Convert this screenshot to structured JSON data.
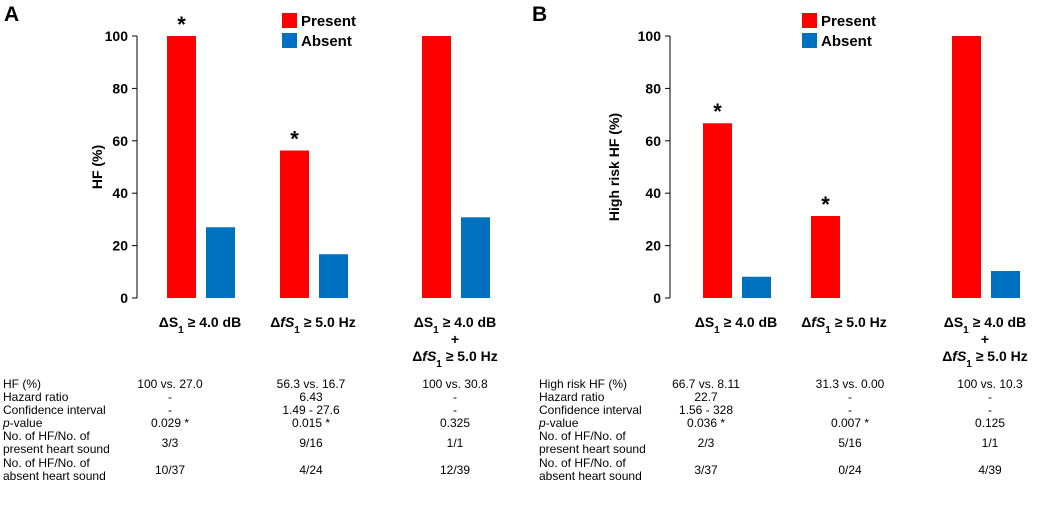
{
  "chart_data": [
    {
      "panel": "A",
      "type": "bar",
      "categories": [
        {
          "line1_a": "ΔS",
          "line1_sub": "1",
          "line1_b": " ≥ 4.0 dB",
          "line2_a": "",
          "line2_sub": "",
          "line2_b": "",
          "line3_a": "",
          "line3_sub": "",
          "line3_b": ""
        },
        {
          "line1_a": "Δ",
          "line1_sub": "",
          "line1_b": "",
          "line1_i": "fS",
          "line1_isub": "1",
          "line1_c": " ≥ 5.0 Hz",
          "line2_a": "",
          "line3_a": ""
        },
        {
          "line1_a": "ΔS",
          "line1_sub": "1",
          "line1_b": " ≥ 4.0 dB",
          "line2_a": "+",
          "line3_a": "Δ",
          "line3_i": "fS",
          "line3_isub": "1",
          "line3_c": " ≥ 5.0 Hz"
        }
      ],
      "series": [
        {
          "name": "Present",
          "color": "#ff0000",
          "values": [
            100,
            56.3,
            100
          ]
        },
        {
          "name": "Absent",
          "color": "#0070c0",
          "values": [
            27.0,
            16.7,
            30.8
          ]
        }
      ],
      "significant": [
        true,
        true,
        false
      ],
      "star_symbol": "*",
      "ylabel": "HF (%)",
      "ylim": [
        0,
        100
      ],
      "yticks": [
        0,
        20,
        40,
        60,
        80,
        100
      ],
      "legend": "top-center",
      "grid": false
    },
    {
      "panel": "B",
      "type": "bar",
      "categories": [
        {
          "line1_a": "ΔS",
          "line1_sub": "1",
          "line1_b": " ≥ 4.0 dB"
        },
        {
          "line1_a": "Δ",
          "line1_i": "fS",
          "line1_isub": "1",
          "line1_c": " ≥ 5.0 Hz"
        },
        {
          "line1_a": "ΔS",
          "line1_sub": "1",
          "line1_b": " ≥ 4.0 dB",
          "line2_a": "+",
          "line3_a": "Δ",
          "line3_i": "fS",
          "line3_isub": "1",
          "line3_c": " ≥ 5.0 Hz"
        }
      ],
      "series": [
        {
          "name": "Present",
          "color": "#ff0000",
          "values": [
            66.7,
            31.3,
            100
          ]
        },
        {
          "name": "Absent",
          "color": "#0070c0",
          "values": [
            8.11,
            0.0,
            10.3
          ]
        }
      ],
      "significant": [
        true,
        true,
        false
      ],
      "star_symbol": "*",
      "ylabel": "High risk HF (%)",
      "ylim": [
        0,
        100
      ],
      "yticks": [
        0,
        20,
        40,
        60,
        80,
        100
      ],
      "legend": "top-center",
      "grid": false
    }
  ],
  "panels": {
    "a": {
      "letter": "A",
      "legend_present": "Present",
      "legend_absent": "Absent",
      "ylabel": "HF (%)",
      "stats": [
        {
          "label": "HF (%)",
          "values": [
            "100 vs. 27.0",
            "56.3 vs. 16.7",
            "100 vs. 30.8"
          ]
        },
        {
          "label": "Hazard ratio",
          "values": [
            "-",
            "6.43",
            "-"
          ]
        },
        {
          "label": "Confidence interval",
          "values": [
            "-",
            "1.49 - 27.6",
            "-"
          ]
        },
        {
          "label_italic": "p",
          "label_rest": "-value",
          "values": [
            "0.029 *",
            "0.015 *",
            "0.325"
          ]
        },
        {
          "label": "No. of HF/No. of\npresent heart sound",
          "values": [
            "3/3",
            "9/16",
            "1/1"
          ]
        },
        {
          "label": "No. of HF/No. of\nabsent heart sound",
          "values": [
            "10/37",
            "4/24",
            "12/39"
          ]
        }
      ]
    },
    "b": {
      "letter": "B",
      "legend_present": "Present",
      "legend_absent": "Absent",
      "ylabel": "High risk HF (%)",
      "stats": [
        {
          "label": "High risk HF (%)",
          "values": [
            "66.7 vs. 8.11",
            "31.3 vs. 0.00",
            "100 vs. 10.3"
          ]
        },
        {
          "label": "Hazard ratio",
          "values": [
            "22.7",
            "-",
            "-"
          ]
        },
        {
          "label": "Confidence interval",
          "values": [
            "1.56 - 328",
            "-",
            "-"
          ]
        },
        {
          "label_italic": "p",
          "label_rest": "-value",
          "values": [
            "0.036 *",
            "0.007 *",
            "0.125"
          ]
        },
        {
          "label": "No. of HF/No. of\npresent heart sound",
          "values": [
            "2/3",
            "5/16",
            "1/1"
          ]
        },
        {
          "label": "No. of HF/No. of\nabsent heart sound",
          "values": [
            "3/37",
            "0/24",
            "4/39"
          ]
        }
      ]
    }
  }
}
